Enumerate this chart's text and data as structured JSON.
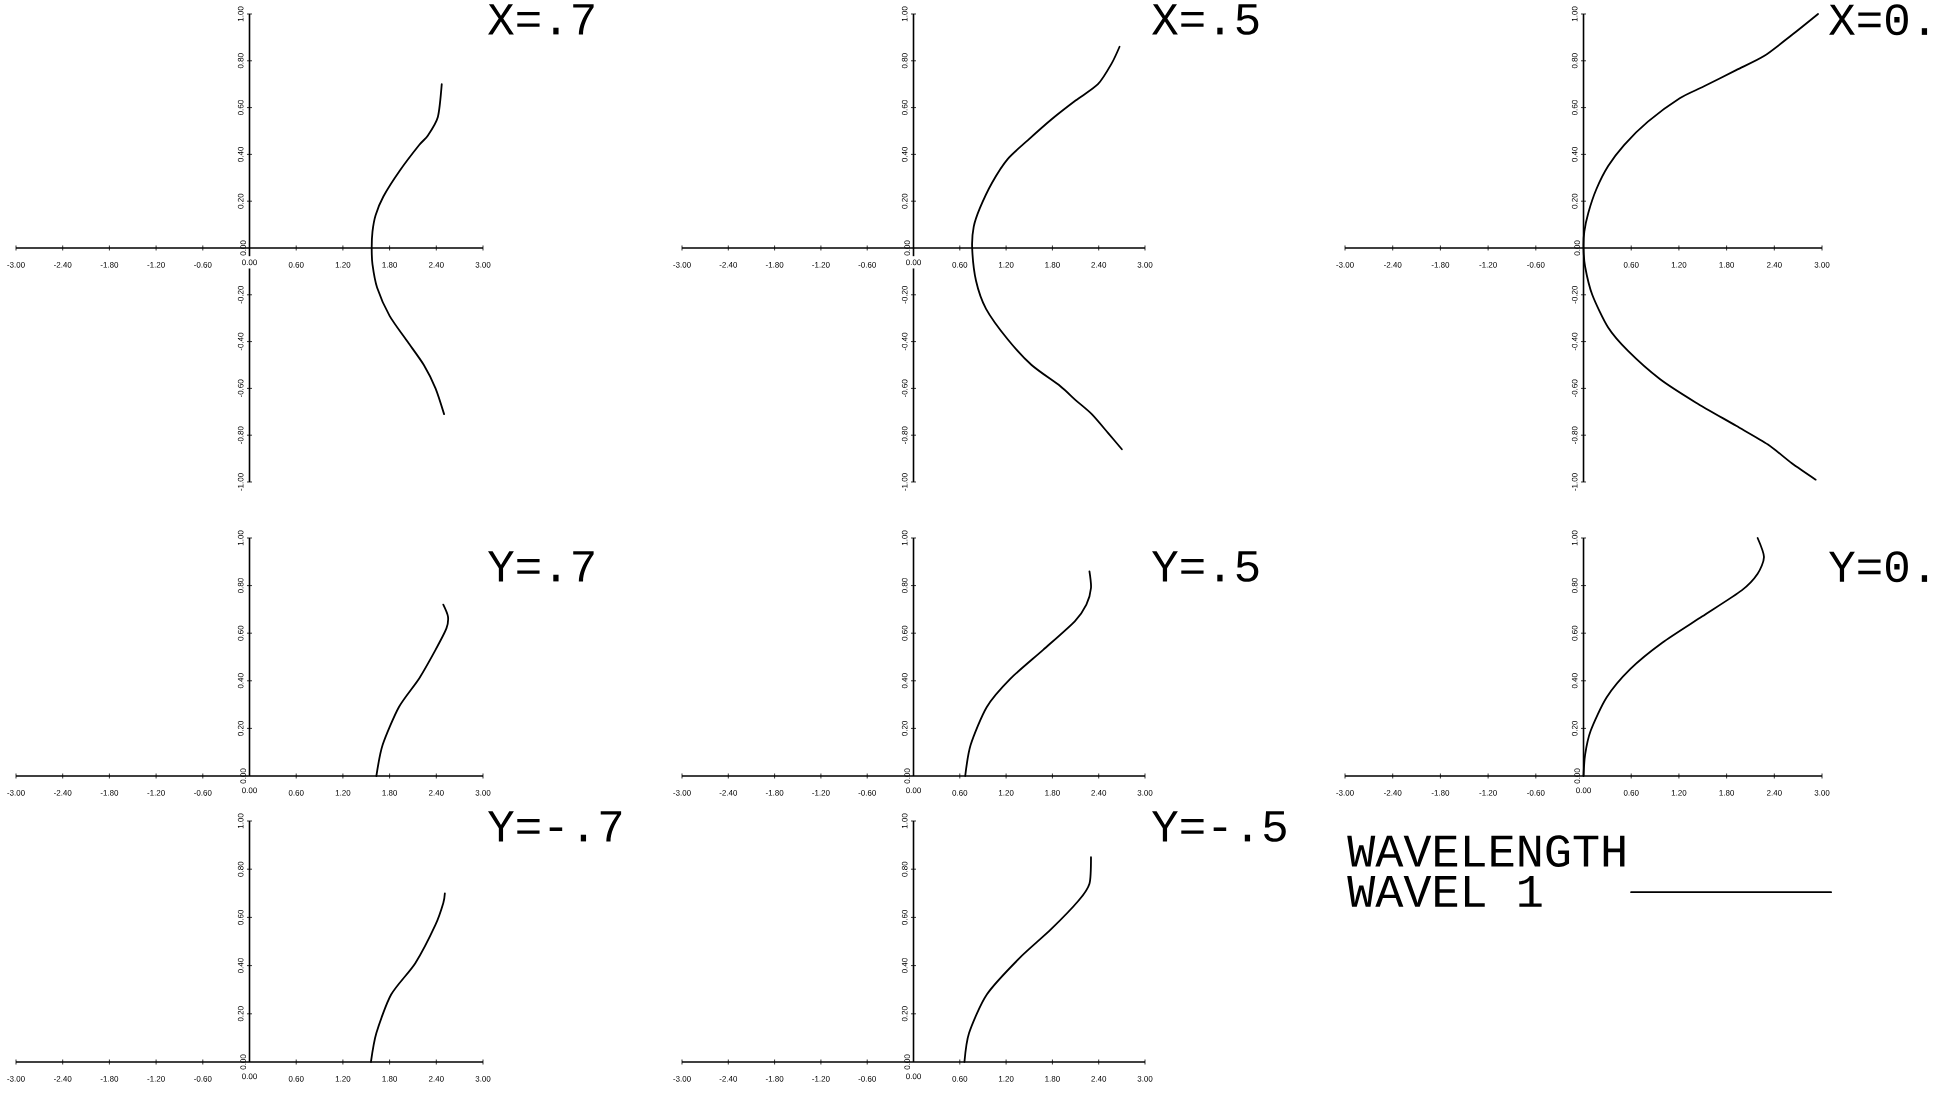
{
  "chart_data": [
    {
      "type": "line",
      "title": "X=.7",
      "xlim": [
        -3,
        3
      ],
      "ylim": [
        -1,
        1
      ],
      "xticks": [
        {
          "value": -3,
          "label": "-3.00"
        },
        {
          "value": -2.4,
          "label": "-2.40"
        },
        {
          "value": -1.8,
          "label": "-1.80"
        },
        {
          "value": -1.2,
          "label": "-1.20"
        },
        {
          "value": -0.6,
          "label": "-0.60"
        },
        {
          "value": 0,
          "label": "0.00"
        },
        {
          "value": 0.6,
          "label": "0.60"
        },
        {
          "value": 1.2,
          "label": "1.20"
        },
        {
          "value": 1.8,
          "label": "1.80"
        },
        {
          "value": 2.4,
          "label": "2.40"
        },
        {
          "value": 3,
          "label": "3.00"
        }
      ],
      "yticks": [
        {
          "value": -1,
          "label": "-1.00"
        },
        {
          "value": -0.8,
          "label": "-0.80"
        },
        {
          "value": -0.6,
          "label": "-0.60"
        },
        {
          "value": -0.4,
          "label": "-0.40"
        },
        {
          "value": -0.2,
          "label": "-0.20"
        },
        {
          "value": 0,
          "label": "0.00"
        },
        {
          "value": 0.2,
          "label": "0.20"
        },
        {
          "value": 0.4,
          "label": "0.40"
        },
        {
          "value": 0.6,
          "label": "0.60"
        },
        {
          "value": 0.8,
          "label": "0.80"
        },
        {
          "value": 1,
          "label": "1.00"
        }
      ],
      "series": [
        {
          "color": "#000000",
          "x": [
            2.47,
            2.42,
            2.29,
            2.18,
            1.93,
            1.72,
            1.62,
            1.58,
            1.57,
            1.58,
            1.64,
            1.8,
            2.03,
            2.24,
            2.39,
            2.5
          ],
          "values": [
            0.7,
            0.56,
            0.48,
            0.44,
            0.33,
            0.22,
            0.14,
            0.07,
            0.0,
            -0.07,
            -0.17,
            -0.29,
            -0.4,
            -0.5,
            -0.6,
            -0.71
          ]
        }
      ]
    },
    {
      "type": "line",
      "title": "X=.5",
      "xlim": [
        -3,
        3
      ],
      "ylim": [
        -1,
        1
      ],
      "xticks": [
        {
          "value": -3,
          "label": "-3.00"
        },
        {
          "value": -2.4,
          "label": "-2.40"
        },
        {
          "value": -1.8,
          "label": "-1.80"
        },
        {
          "value": -1.2,
          "label": "-1.20"
        },
        {
          "value": -0.6,
          "label": "-0.60"
        },
        {
          "value": 0,
          "label": "0.00"
        },
        {
          "value": 0.6,
          "label": "0.60"
        },
        {
          "value": 1.2,
          "label": "1.20"
        },
        {
          "value": 1.8,
          "label": "1.80"
        },
        {
          "value": 2.4,
          "label": "2.40"
        },
        {
          "value": 3,
          "label": "3.00"
        }
      ],
      "yticks": [
        {
          "value": -1,
          "label": "-1.00"
        },
        {
          "value": -0.8,
          "label": "-0.80"
        },
        {
          "value": -0.6,
          "label": "-0.60"
        },
        {
          "value": -0.4,
          "label": "-0.40"
        },
        {
          "value": -0.2,
          "label": "-0.20"
        },
        {
          "value": 0,
          "label": "0.00"
        },
        {
          "value": 0.2,
          "label": "0.20"
        },
        {
          "value": 0.4,
          "label": "0.40"
        },
        {
          "value": 0.6,
          "label": "0.60"
        },
        {
          "value": 0.8,
          "label": "0.80"
        },
        {
          "value": 1,
          "label": "1.00"
        }
      ],
      "series": [
        {
          "color": "#000000",
          "x": [
            2.67,
            2.57,
            2.39,
            2.1,
            1.79,
            1.48,
            1.22,
            1.02,
            0.86,
            0.78,
            0.76,
            0.81,
            0.94,
            1.22,
            1.53,
            1.9,
            2.1,
            2.31,
            2.52,
            2.7
          ],
          "values": [
            0.86,
            0.79,
            0.7,
            0.63,
            0.55,
            0.46,
            0.38,
            0.28,
            0.17,
            0.09,
            0.0,
            -0.14,
            -0.26,
            -0.39,
            -0.5,
            -0.59,
            -0.65,
            -0.71,
            -0.79,
            -0.86
          ]
        }
      ]
    },
    {
      "type": "line",
      "title": "X=0.",
      "xlim": [
        -3,
        3
      ],
      "ylim": [
        -1,
        1
      ],
      "xticks": [
        {
          "value": -3,
          "label": "-3.00"
        },
        {
          "value": -2.4,
          "label": "-2.40"
        },
        {
          "value": -1.8,
          "label": "-1.80"
        },
        {
          "value": -1.2,
          "label": "-1.20"
        },
        {
          "value": -0.6,
          "label": "-0.60"
        },
        {
          "value": 0,
          "label": null
        },
        {
          "value": 0.6,
          "label": "0.60"
        },
        {
          "value": 1.2,
          "label": "1.20"
        },
        {
          "value": 1.8,
          "label": "1.80"
        },
        {
          "value": 2.4,
          "label": "2.40"
        },
        {
          "value": 3,
          "label": "3.00"
        }
      ],
      "yticks": [
        {
          "value": -1,
          "label": "-1.00"
        },
        {
          "value": -0.8,
          "label": "-0.80"
        },
        {
          "value": -0.6,
          "label": "-0.60"
        },
        {
          "value": -0.4,
          "label": "-0.40"
        },
        {
          "value": -0.2,
          "label": "-0.20"
        },
        {
          "value": 0,
          "label": "0.00"
        },
        {
          "value": 0.2,
          "label": "0.20"
        },
        {
          "value": 0.4,
          "label": "0.40"
        },
        {
          "value": 0.6,
          "label": "0.60"
        },
        {
          "value": 0.8,
          "label": "0.80"
        },
        {
          "value": 1,
          "label": "1.00"
        }
      ],
      "series": [
        {
          "color": "#000000",
          "x": [
            2.95,
            2.62,
            2.27,
            1.92,
            1.51,
            1.21,
            0.81,
            0.51,
            0.31,
            0.16,
            0.06,
            0.01,
            0.0,
            0.02,
            0.11,
            0.31,
            0.56,
            0.96,
            1.41,
            1.92,
            2.32,
            2.62,
            2.92
          ],
          "values": [
            1.0,
            0.91,
            0.82,
            0.76,
            0.69,
            0.64,
            0.54,
            0.44,
            0.35,
            0.25,
            0.15,
            0.07,
            0.0,
            -0.08,
            -0.2,
            -0.34,
            -0.44,
            -0.56,
            -0.66,
            -0.76,
            -0.84,
            -0.92,
            -0.99
          ]
        }
      ]
    },
    {
      "type": "line",
      "title": "Y=.7",
      "xlim": [
        -3,
        3
      ],
      "ylim": [
        0,
        1
      ],
      "xticks": [
        {
          "value": -3,
          "label": "-3.00"
        },
        {
          "value": -2.4,
          "label": "-2.40"
        },
        {
          "value": -1.8,
          "label": "-1.80"
        },
        {
          "value": -1.2,
          "label": "-1.20"
        },
        {
          "value": -0.6,
          "label": "-0.60"
        },
        {
          "value": 0,
          "label": "0.00"
        },
        {
          "value": 0.6,
          "label": "0.60"
        },
        {
          "value": 1.2,
          "label": "1.20"
        },
        {
          "value": 1.8,
          "label": "1.80"
        },
        {
          "value": 2.4,
          "label": "2.40"
        },
        {
          "value": 3,
          "label": "3.00"
        }
      ],
      "yticks": [
        {
          "value": 0,
          "label": "0.00"
        },
        {
          "value": 0.2,
          "label": "0.20"
        },
        {
          "value": 0.4,
          "label": "0.40"
        },
        {
          "value": 0.6,
          "label": "0.60"
        },
        {
          "value": 0.8,
          "label": "0.80"
        },
        {
          "value": 1,
          "label": "1.00"
        }
      ],
      "series": [
        {
          "color": "#000000",
          "x": [
            1.63,
            1.71,
            1.92,
            2.18,
            2.39,
            2.53,
            2.55,
            2.49
          ],
          "values": [
            0.0,
            0.13,
            0.29,
            0.41,
            0.53,
            0.62,
            0.67,
            0.72
          ]
        }
      ]
    },
    {
      "type": "line",
      "title": "Y=.5",
      "xlim": [
        -3,
        3
      ],
      "ylim": [
        0,
        1
      ],
      "xticks": [
        {
          "value": -3,
          "label": "-3.00"
        },
        {
          "value": -2.4,
          "label": "-2.40"
        },
        {
          "value": -1.8,
          "label": "-1.80"
        },
        {
          "value": -1.2,
          "label": "-1.20"
        },
        {
          "value": -0.6,
          "label": "-0.60"
        },
        {
          "value": 0,
          "label": "0.00"
        },
        {
          "value": 0.6,
          "label": "0.60"
        },
        {
          "value": 1.2,
          "label": "1.20"
        },
        {
          "value": 1.8,
          "label": "1.80"
        },
        {
          "value": 2.4,
          "label": "2.40"
        },
        {
          "value": 3,
          "label": "3.00"
        }
      ],
      "yticks": [
        {
          "value": 0,
          "label": "0.00"
        },
        {
          "value": 0.2,
          "label": "0.20"
        },
        {
          "value": 0.4,
          "label": "0.40"
        },
        {
          "value": 0.6,
          "label": "0.60"
        },
        {
          "value": 0.8,
          "label": "0.80"
        },
        {
          "value": 1,
          "label": "1.00"
        }
      ],
      "series": [
        {
          "color": "#000000",
          "x": [
            0.67,
            0.74,
            0.95,
            1.26,
            1.68,
            2.09,
            2.24,
            2.3,
            2.28
          ],
          "values": [
            0.0,
            0.13,
            0.29,
            0.41,
            0.53,
            0.65,
            0.72,
            0.79,
            0.86
          ]
        }
      ]
    },
    {
      "type": "line",
      "title": "Y=0.",
      "xlim": [
        -3,
        3
      ],
      "ylim": [
        0,
        1
      ],
      "xticks": [
        {
          "value": -3,
          "label": "-3.00"
        },
        {
          "value": -2.4,
          "label": "-2.40"
        },
        {
          "value": -1.8,
          "label": "-1.80"
        },
        {
          "value": -1.2,
          "label": "-1.20"
        },
        {
          "value": -0.6,
          "label": "-0.60"
        },
        {
          "value": 0,
          "label": "0.00"
        },
        {
          "value": 0.6,
          "label": "0.60"
        },
        {
          "value": 1.2,
          "label": "1.20"
        },
        {
          "value": 1.8,
          "label": "1.80"
        },
        {
          "value": 2.4,
          "label": "2.40"
        },
        {
          "value": 3,
          "label": "3.00"
        }
      ],
      "yticks": [
        {
          "value": 0,
          "label": "0.00"
        },
        {
          "value": 0.2,
          "label": "0.20"
        },
        {
          "value": 0.4,
          "label": "0.40"
        },
        {
          "value": 0.6,
          "label": "0.60"
        },
        {
          "value": 0.8,
          "label": "0.80"
        },
        {
          "value": 1,
          "label": "1.00"
        }
      ],
      "series": [
        {
          "color": "#000000",
          "x": [
            0.0,
            0.02,
            0.09,
            0.29,
            0.59,
            0.99,
            1.49,
            1.99,
            2.19,
            2.27,
            2.19
          ],
          "values": [
            0.0,
            0.09,
            0.19,
            0.33,
            0.45,
            0.56,
            0.67,
            0.78,
            0.85,
            0.92,
            1.0
          ]
        }
      ]
    },
    {
      "type": "line",
      "title": "Y=-.7",
      "xlim": [
        -3,
        3
      ],
      "ylim": [
        0,
        1
      ],
      "xticks": [
        {
          "value": -3,
          "label": "-3.00"
        },
        {
          "value": -2.4,
          "label": "-2.40"
        },
        {
          "value": -1.8,
          "label": "-1.80"
        },
        {
          "value": -1.2,
          "label": "-1.20"
        },
        {
          "value": -0.6,
          "label": "-0.60"
        },
        {
          "value": 0,
          "label": "0.00"
        },
        {
          "value": 0.6,
          "label": "0.60"
        },
        {
          "value": 1.2,
          "label": "1.20"
        },
        {
          "value": 1.8,
          "label": "1.80"
        },
        {
          "value": 2.4,
          "label": "2.40"
        },
        {
          "value": 3,
          "label": "3.00"
        }
      ],
      "yticks": [
        {
          "value": 0,
          "label": "0.00"
        },
        {
          "value": 0.2,
          "label": "0.20"
        },
        {
          "value": 0.4,
          "label": "0.40"
        },
        {
          "value": 0.6,
          "label": "0.60"
        },
        {
          "value": 0.8,
          "label": "0.80"
        },
        {
          "value": 1,
          "label": "1.00"
        }
      ],
      "series": [
        {
          "color": "#000000",
          "x": [
            1.56,
            1.63,
            1.82,
            2.13,
            2.39,
            2.49,
            2.51
          ],
          "values": [
            0.0,
            0.12,
            0.28,
            0.41,
            0.57,
            0.66,
            0.7
          ]
        }
      ]
    },
    {
      "type": "line",
      "title": "Y=-.5",
      "xlim": [
        -3,
        3
      ],
      "ylim": [
        0,
        1
      ],
      "legend": "right",
      "legend_title": "WAVELENGTH",
      "xticks": [
        {
          "value": -3,
          "label": "-3.00"
        },
        {
          "value": -2.4,
          "label": "-2.40"
        },
        {
          "value": -1.8,
          "label": "-1.80"
        },
        {
          "value": -1.2,
          "label": "-1.20"
        },
        {
          "value": -0.6,
          "label": "-0.60"
        },
        {
          "value": 0,
          "label": "0.00"
        },
        {
          "value": 0.6,
          "label": "0.60"
        },
        {
          "value": 1.2,
          "label": "1.20"
        },
        {
          "value": 1.8,
          "label": "1.80"
        },
        {
          "value": 2.4,
          "label": "2.40"
        },
        {
          "value": 3,
          "label": "3.00"
        }
      ],
      "yticks": [
        {
          "value": 0,
          "label": "0.00"
        },
        {
          "value": 0.2,
          "label": "0.20"
        },
        {
          "value": 0.4,
          "label": "0.40"
        },
        {
          "value": 0.6,
          "label": "0.60"
        },
        {
          "value": 0.8,
          "label": "0.80"
        },
        {
          "value": 1,
          "label": "1.00"
        }
      ],
      "series": [
        {
          "name": "WAVEL 1",
          "color": "#000000",
          "x": [
            0.66,
            0.72,
            0.95,
            1.37,
            1.78,
            2.14,
            2.28,
            2.3
          ],
          "values": [
            0.0,
            0.12,
            0.28,
            0.43,
            0.55,
            0.67,
            0.74,
            0.85
          ]
        }
      ]
    }
  ]
}
